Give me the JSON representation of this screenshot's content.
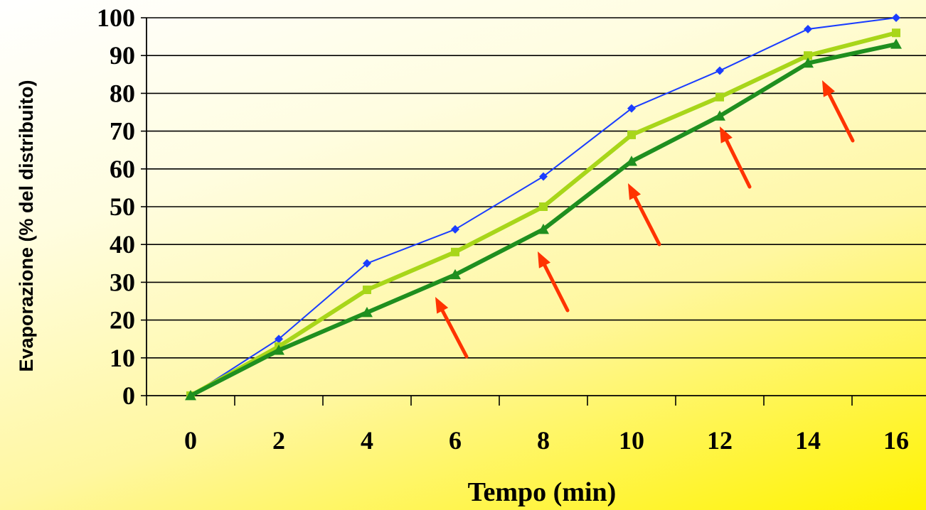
{
  "chart_data": {
    "type": "line",
    "xlabel": "Tempo (min)",
    "ylabel": "Evaporazione (% del distribuito)",
    "categories": [
      "0",
      "2",
      "4",
      "6",
      "8",
      "10",
      "12",
      "14",
      "16"
    ],
    "ylim": [
      0,
      100
    ],
    "yticks": [
      "0",
      "10",
      "20",
      "30",
      "40",
      "50",
      "60",
      "70",
      "80",
      "90",
      "100"
    ],
    "grid": true,
    "legend": "none",
    "series": [
      {
        "color": "#1a3dff",
        "marker": "diamond",
        "values": [
          0,
          15,
          35,
          44,
          58,
          76,
          86,
          97,
          100
        ]
      },
      {
        "color": "#a8d61a",
        "marker": "square",
        "values": [
          0,
          13,
          28,
          38,
          50,
          69,
          79,
          90,
          96
        ]
      },
      {
        "color": "#1f8f1f",
        "marker": "triangle",
        "values": [
          0,
          12,
          22,
          32,
          44,
          62,
          74,
          88,
          93
        ]
      }
    ],
    "annotations": {
      "arrow_color": "#ff3300",
      "arrow_count": 6
    }
  }
}
